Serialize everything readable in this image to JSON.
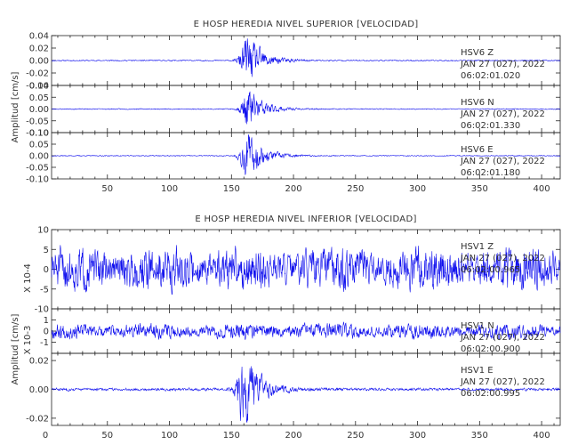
{
  "chart_data": [
    {
      "type": "line",
      "title": "E HOSP HEREDIA NIVEL SUPERIOR [VELOCIDAD]",
      "ylabel": "Amplitud [cm/s]",
      "xlabel": "",
      "xlim": [
        5,
        415
      ],
      "x_ticks": [
        "50",
        "100",
        "150",
        "200",
        "250",
        "300",
        "350",
        "400"
      ],
      "grid": false,
      "line_color": "#1010ee",
      "panels": [
        {
          "channel": "HSV6    Z",
          "date": "JAN 27 (027), 2022",
          "time": "06:02:01.020",
          "ylim": [
            -0.04,
            0.04
          ],
          "y_ticks": [
            "0.04",
            "0.02",
            "0.00",
            "-0.02",
            "-0.04"
          ],
          "multiplier": "",
          "series": {
            "noise": 0.0007,
            "burst_center": 163,
            "burst_amp": 0.03,
            "burst_rise": 4,
            "burst_decay": 12,
            "seed": 11
          }
        },
        {
          "channel": "HSV6    N",
          "date": "JAN 27 (027), 2022",
          "time": "06:02:01.330",
          "ylim": [
            -0.1,
            0.1
          ],
          "y_ticks": [
            "0.10",
            "0.05",
            "0.00",
            "-0.05",
            "-0.10"
          ],
          "multiplier": "",
          "series": {
            "noise": 0.0015,
            "burst_center": 164,
            "burst_amp": 0.072,
            "burst_rise": 4,
            "burst_decay": 11,
            "seed": 23
          }
        },
        {
          "channel": "HSV6    E",
          "date": "JAN 27 (027), 2022",
          "time": "06:02:01.180",
          "ylim": [
            -0.1,
            0.1
          ],
          "y_ticks": [
            "0.10",
            "0.05",
            "0.00",
            "-0.05",
            "-0.10"
          ],
          "multiplier": "",
          "series": {
            "noise": 0.0015,
            "burst_center": 163,
            "burst_amp": 0.075,
            "burst_rise": 4,
            "burst_decay": 12,
            "seed": 37
          }
        }
      ]
    },
    {
      "type": "line",
      "title": "E HOSP HEREDIA NIVEL INFERIOR [VELOCIDAD]",
      "ylabel": "Amplitud [cm/s]",
      "xlabel": "",
      "xlim": [
        5,
        415
      ],
      "x_ticks": [
        "0",
        "50",
        "100",
        "150",
        "200",
        "250",
        "300",
        "350",
        "400"
      ],
      "grid": false,
      "line_color": "#1010ee",
      "panels": [
        {
          "channel": "HSV1    Z",
          "date": "JAN 27 (027), 2022",
          "time": "06:02:00.965",
          "ylim": [
            -10,
            10
          ],
          "y_ticks": [
            "10",
            "5",
            "0",
            "-5",
            "-10"
          ],
          "multiplier": "X 10-4",
          "series": {
            "noise": 3.4,
            "burst_center": 0,
            "burst_amp": 0,
            "burst_rise": 1,
            "burst_decay": 1,
            "seed": 51
          }
        },
        {
          "channel": "HSV1    N",
          "date": "JAN 27 (027), 2022",
          "time": "06:02:00.900",
          "ylim": [
            -2,
            2
          ],
          "y_ticks": [
            "1",
            "0",
            "-1"
          ],
          "multiplier": "X 10-3",
          "series": {
            "noise": 0.42,
            "burst_center": 0,
            "burst_amp": 0,
            "burst_rise": 1,
            "burst_decay": 1,
            "seed": 67
          }
        },
        {
          "channel": "HSV1    E",
          "date": "JAN 27 (027), 2022",
          "time": "06:02:00.995",
          "ylim": [
            -0.025,
            0.025
          ],
          "y_ticks": [
            "0.02",
            "0.00",
            "-0.02"
          ],
          "multiplier": "",
          "series": {
            "noise": 0.0007,
            "burst_center": 160,
            "burst_amp": 0.02,
            "burst_rise": 4,
            "burst_decay": 12,
            "seed": 83
          }
        }
      ]
    }
  ]
}
